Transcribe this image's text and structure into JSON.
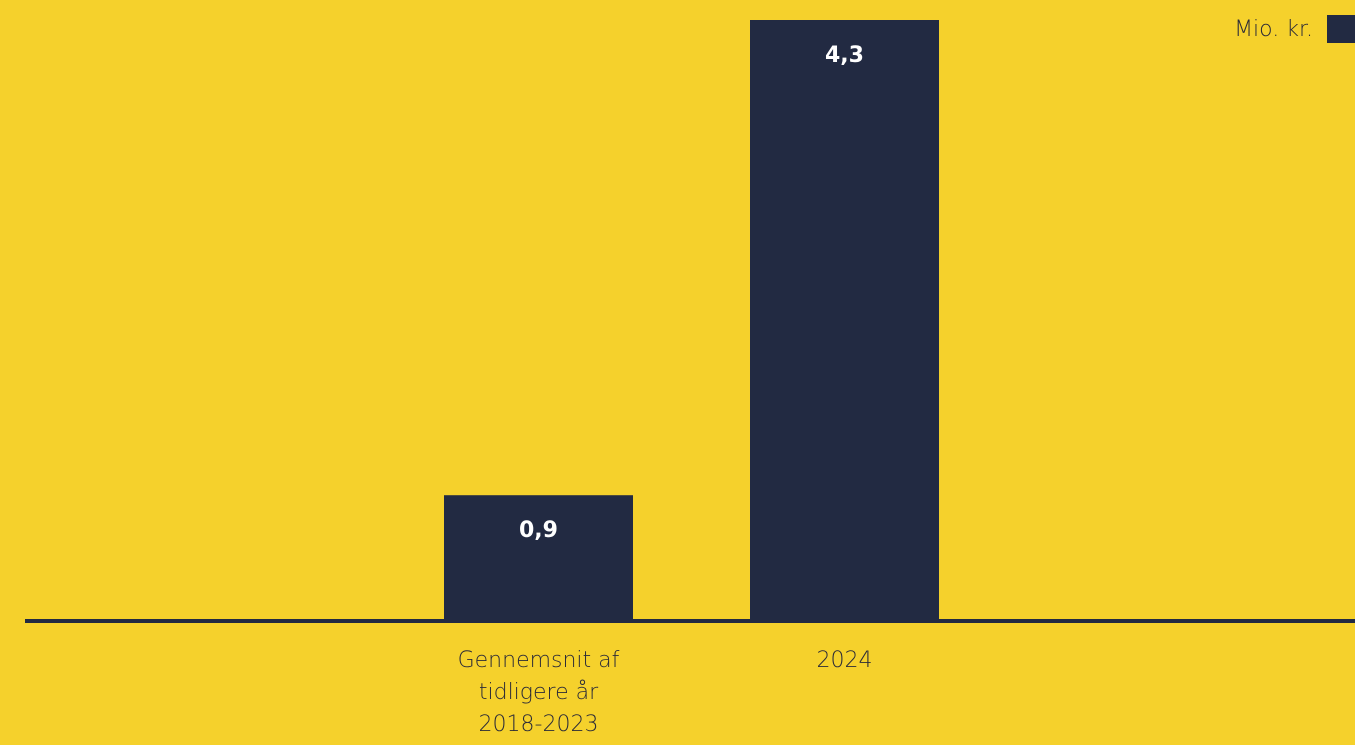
{
  "colors": {
    "background": "#f5d12c",
    "bar": "#222a42",
    "axis": "#222a42",
    "value_text": "#ffffff",
    "label_text": "#2b2b38"
  },
  "legend": {
    "label": "Mio. kr."
  },
  "chart_data": {
    "type": "bar",
    "categories": [
      [
        "Gennemsnit af",
        "tidligere år",
        "2018-2023"
      ],
      [
        "2024"
      ]
    ],
    "values": [
      0.9,
      4.3
    ],
    "value_labels": [
      "0,9",
      "4,3"
    ],
    "series": [
      {
        "values": [
          0.9,
          4.3
        ]
      }
    ],
    "ylim": [
      0,
      4.3
    ],
    "grid": false,
    "legend_position": "top-right"
  }
}
